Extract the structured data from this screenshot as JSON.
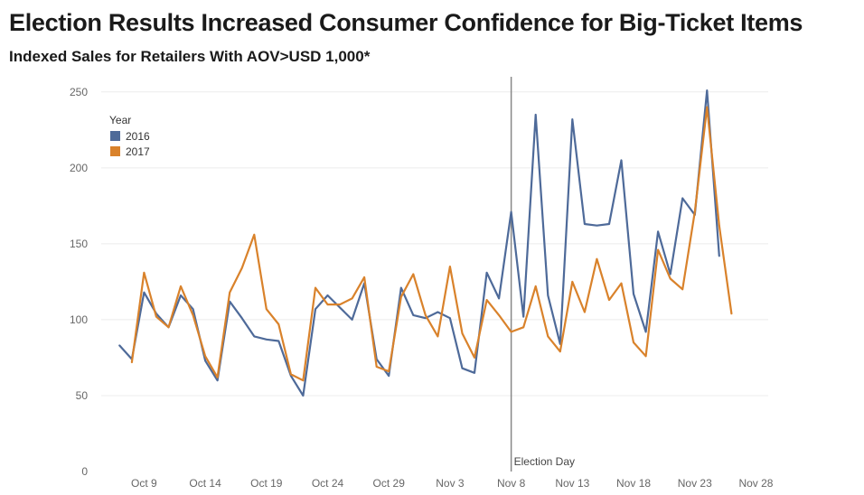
{
  "chart_data": {
    "type": "line",
    "title": "Election Results Increased Consumer Confidence for Big-Ticket Items",
    "subtitle": "Indexed Sales for Retailers With AOV>USD 1,000*",
    "ylim": [
      0,
      260
    ],
    "yticks": [
      0,
      50,
      100,
      150,
      200,
      250
    ],
    "xticks": [
      {
        "day": 9,
        "label": "Oct 9"
      },
      {
        "day": 14,
        "label": "Oct 14"
      },
      {
        "day": 19,
        "label": "Oct 19"
      },
      {
        "day": 24,
        "label": "Oct 24"
      },
      {
        "day": 29,
        "label": "Oct 29"
      },
      {
        "day": 34,
        "label": "Nov 3"
      },
      {
        "day": 39,
        "label": "Nov 8"
      },
      {
        "day": 44,
        "label": "Nov 13"
      },
      {
        "day": 49,
        "label": "Nov 18"
      },
      {
        "day": 54,
        "label": "Nov 23"
      },
      {
        "day": 59,
        "label": "Nov 28"
      }
    ],
    "grid": true,
    "legend": {
      "title": "Year",
      "position": "top-left"
    },
    "annotation": {
      "day": 39,
      "label": "Election Day"
    },
    "series": [
      {
        "name": "2016",
        "color": "#4e6a99",
        "x": [
          7,
          8,
          9,
          10,
          11,
          12,
          13,
          14,
          15,
          16,
          17,
          18,
          19,
          20,
          21,
          22,
          23,
          24,
          25,
          26,
          27,
          28,
          29,
          30,
          31,
          32,
          33,
          34,
          35,
          36,
          37,
          38,
          39,
          40,
          41,
          42,
          43,
          44,
          45,
          46,
          47,
          48,
          49,
          50,
          51,
          52,
          53,
          54,
          55,
          56
        ],
        "values": [
          83,
          74,
          118,
          104,
          95,
          116,
          107,
          73,
          60,
          112,
          101,
          89,
          87,
          86,
          63,
          50,
          107,
          116,
          108,
          100,
          124,
          74,
          63,
          121,
          103,
          101,
          105,
          101,
          68,
          65,
          131,
          114,
          171,
          102,
          235,
          116,
          84,
          232,
          163,
          162,
          163,
          205,
          117,
          92,
          158,
          130,
          180,
          169,
          251,
          142
        ]
      },
      {
        "name": "2017",
        "color": "#d9822b",
        "x": [
          8,
          9,
          10,
          11,
          12,
          13,
          14,
          15,
          16,
          17,
          18,
          19,
          20,
          21,
          22,
          23,
          24,
          25,
          26,
          27,
          28,
          29,
          30,
          31,
          32,
          33,
          34,
          35,
          36,
          37,
          38,
          39,
          40,
          41,
          42,
          43,
          44,
          45,
          46,
          47,
          48,
          49,
          50,
          51,
          52,
          53,
          54,
          55,
          56,
          57
        ],
        "values": [
          72,
          131,
          102,
          95,
          122,
          103,
          76,
          62,
          118,
          134,
          156,
          107,
          97,
          64,
          60,
          121,
          110,
          110,
          114,
          128,
          69,
          66,
          115,
          130,
          103,
          89,
          135,
          91,
          75,
          113,
          103,
          92,
          95,
          122,
          89,
          79,
          125,
          105,
          140,
          113,
          124,
          85,
          76,
          146,
          127,
          120,
          171,
          240,
          162,
          104
        ]
      }
    ]
  }
}
